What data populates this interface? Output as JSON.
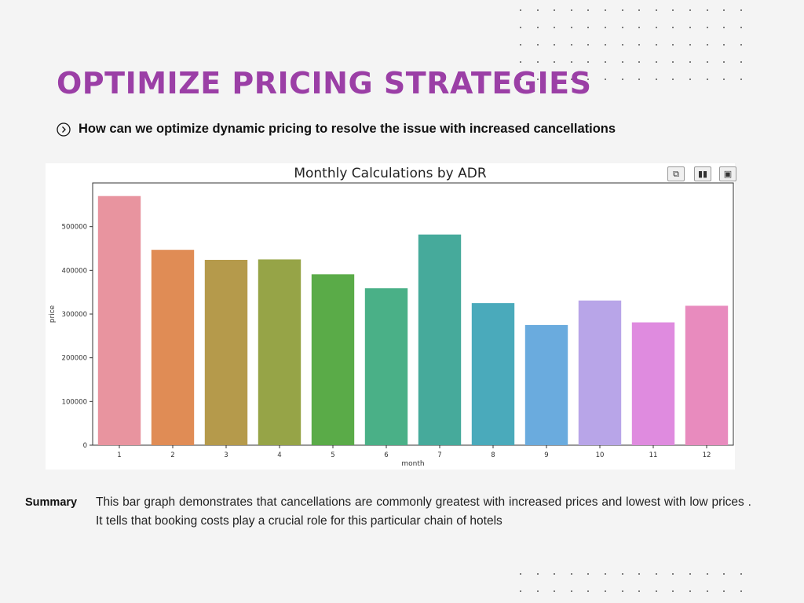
{
  "slide": {
    "title": "OPTIMIZE PRICING STRATEGIES",
    "question": "How can we optimize dynamic pricing to resolve the issue with increased cancellations",
    "summary_label": "Summary",
    "summary_text": "This bar graph demonstrates that cancellations are commonly greatest  with increased prices and lowest with low prices . It tells that booking costs play a crucial role for this particular chain of hotels",
    "colors": {
      "title": "#9b3fa6"
    }
  },
  "toolbar": {
    "icons": [
      "copy-icon",
      "bar-chart-icon",
      "save-icon"
    ]
  },
  "chart_data": {
    "type": "bar",
    "title": "Monthly Calculations by ADR",
    "xlabel": "month",
    "ylabel": "price",
    "categories": [
      "1",
      "2",
      "3",
      "4",
      "5",
      "6",
      "7",
      "8",
      "9",
      "10",
      "11",
      "12"
    ],
    "values": [
      570000,
      447000,
      424000,
      425000,
      391000,
      359000,
      482000,
      325000,
      275000,
      331000,
      281000,
      319000
    ],
    "ylim": [
      0,
      600000
    ],
    "yticks": [
      0,
      100000,
      200000,
      300000,
      400000,
      500000
    ],
    "ytick_labels": [
      "0",
      "100000",
      "200000",
      "300000",
      "400000",
      "500000"
    ],
    "colors": [
      "#e8949f",
      "#e08c55",
      "#b59a4b",
      "#96a447",
      "#5aab48",
      "#4ab087",
      "#46aa9b",
      "#4aaabb",
      "#6aabde",
      "#b8a5e8",
      "#df8bdf",
      "#e88bbe"
    ],
    "grid": false,
    "legend": "none"
  }
}
